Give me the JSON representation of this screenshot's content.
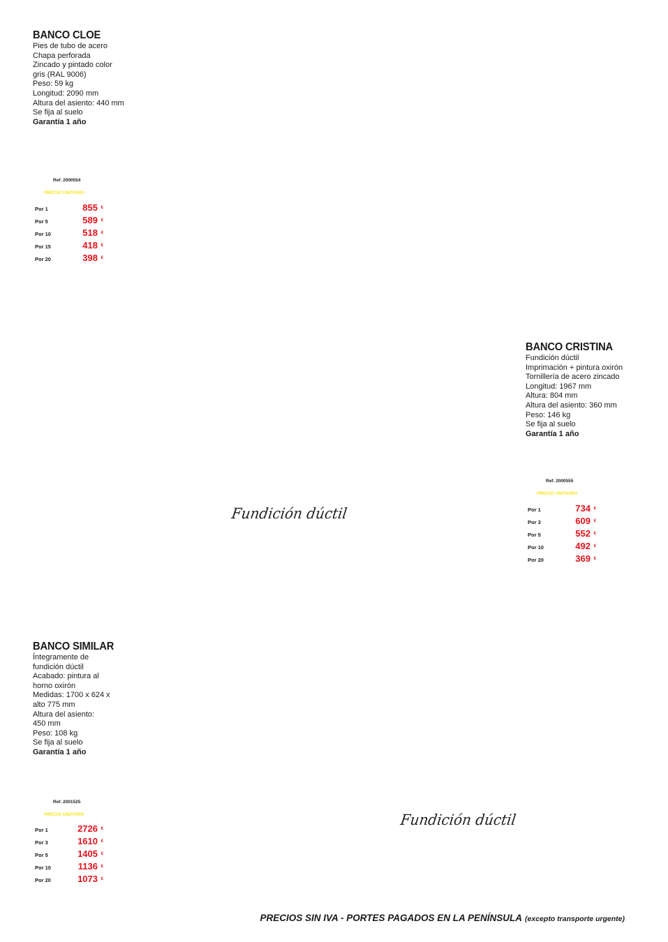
{
  "colors": {
    "price_red": "#e3121b",
    "unit_yellow": "#f5e61a",
    "text_dark": "#1a1a1a"
  },
  "products": [
    {
      "name": "BANCO CLOE",
      "specs": [
        "Pies de tubo de acero",
        "Chapa perforada",
        "Zincado y pintado color",
        "gris (RAL 9006)",
        "Peso: 59 kg",
        "Longitud: 2090 mm",
        "Altura del asiento: 440 mm",
        "Se fija al suelo"
      ],
      "guarantee": "Garantía 1 año",
      "ref": "Ref. 2000554",
      "unit_label": "PRECIO UNITARIO",
      "currency": "€",
      "prices": [
        {
          "qty": "Por 1",
          "price": "855"
        },
        {
          "qty": "Por 5",
          "price": "589"
        },
        {
          "qty": "Por 10",
          "price": "518"
        },
        {
          "qty": "Por 15",
          "price": "418"
        },
        {
          "qty": "Por 20",
          "price": "398"
        }
      ]
    },
    {
      "name": "BANCO CRISTINA",
      "specs": [
        "Fundición dúctil",
        "Imprimación + pintura oxirón",
        "Tornillería de acero zincado",
        "Longitud: 1967 mm",
        "Altura: 804 mm",
        "Altura del asiento: 360 mm",
        "Peso: 146 kg",
        "Se fija al suelo"
      ],
      "guarantee": "Garantía 1 año",
      "ref": "Ref. 2000555",
      "unit_label": "PRECIO UNITARIO",
      "currency": "€",
      "prices": [
        {
          "qty": "Por 1",
          "price": "734"
        },
        {
          "qty": "Por 3",
          "price": "609"
        },
        {
          "qty": "Por 5",
          "price": "552"
        },
        {
          "qty": "Por 10",
          "price": "492"
        },
        {
          "qty": "Por 20",
          "price": "369"
        }
      ]
    },
    {
      "name": "BANCO SIMILAR",
      "specs": [
        "Íntegramente de",
        "fundición dúctil",
        "Acabado: pintura al",
        "horno oxirón",
        "Medidas: 1700 x 624 x",
        "alto 775 mm",
        "Altura del asiento:",
        "450 mm",
        "Peso: 108 kg",
        "Se fija al suelo"
      ],
      "guarantee": "Garantía 1 año",
      "ref": "Ref. 2001525",
      "unit_label": "PRECIO UNITARIO",
      "currency": "€",
      "prices": [
        {
          "qty": "Por 1",
          "price": "2726"
        },
        {
          "qty": "Por 3",
          "price": "1610"
        },
        {
          "qty": "Por 5",
          "price": "1405"
        },
        {
          "qty": "Por 10",
          "price": "1136"
        },
        {
          "qty": "Por 20",
          "price": "1073"
        }
      ]
    }
  ],
  "captions": [
    "Fundición dúctil",
    "Fundición dúctil"
  ],
  "footer": {
    "main": "PRECIOS SIN IVA - PORTES PAGADOS EN LA PENÍNSULA",
    "note": "(excepto transporte urgente)"
  }
}
